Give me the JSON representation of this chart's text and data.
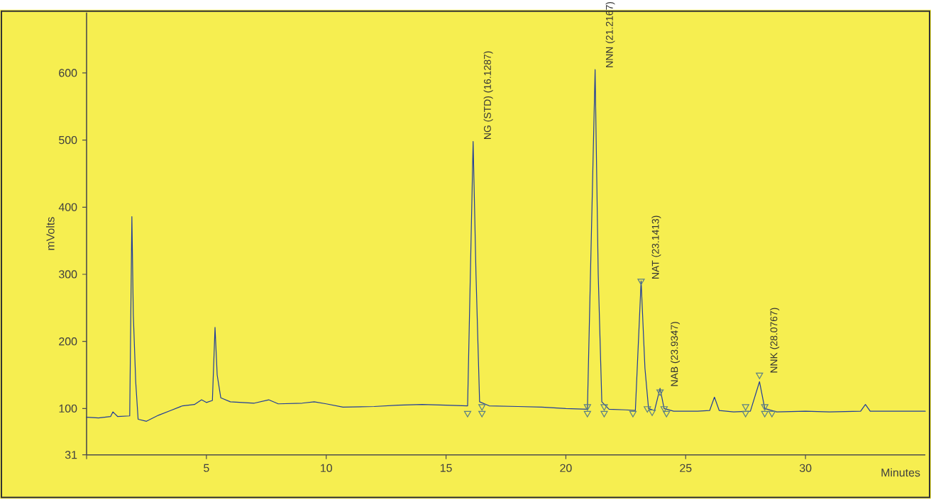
{
  "chart_data": {
    "type": "line",
    "xlabel": "Minutes",
    "ylabel": "mVolts",
    "xlim": [
      0,
      35
    ],
    "ylim": [
      31,
      690
    ],
    "xticks": [
      {
        "value": 0,
        "label": null
      },
      5,
      10,
      15,
      20,
      25,
      30
    ],
    "yticks": [
      31,
      100,
      200,
      300,
      400,
      500,
      600
    ],
    "grid": false,
    "series": [
      {
        "color": "#1f3c9a",
        "x": [
          0,
          0.5,
          1.0,
          1.1,
          1.3,
          1.8,
          1.89,
          1.95,
          2.05,
          2.15,
          2.5,
          3.0,
          3.5,
          4.0,
          4.5,
          4.8,
          5.0,
          5.25,
          5.36,
          5.45,
          5.6,
          6.0,
          7.0,
          7.6,
          8.0,
          9.0,
          9.5,
          10.0,
          10.7,
          12.0,
          13.0,
          14.0,
          15.0,
          15.9,
          16.13,
          16.25,
          16.4,
          16.8,
          18,
          19,
          20,
          20.9,
          21.22,
          21.35,
          21.5,
          21.8,
          22.5,
          22.9,
          23.14,
          23.3,
          23.45,
          23.7,
          23.93,
          24.1,
          24.5,
          25.5,
          26.0,
          26.2,
          26.4,
          27.0,
          27.7,
          28.08,
          28.3,
          28.8,
          30,
          31,
          32.3,
          32.5,
          32.7,
          34,
          35
        ],
        "values": [
          87,
          86,
          88,
          95,
          88,
          89,
          386,
          240,
          140,
          84,
          81,
          90,
          97,
          104,
          106,
          113,
          109,
          112,
          221,
          150,
          116,
          110,
          108,
          113,
          107,
          108,
          110,
          107,
          102,
          103,
          105,
          106,
          105,
          104,
          498,
          300,
          110,
          104,
          103,
          102,
          100,
          99,
          605,
          300,
          110,
          99,
          98,
          97,
          290,
          160,
          100,
          97,
          130,
          100,
          96,
          96,
          97,
          117,
          97,
          95,
          96,
          140,
          100,
          95,
          96,
          95,
          96,
          106,
          96,
          96,
          96
        ]
      },
      {
        "type": "scatter",
        "marker": "triangle",
        "color": "#5a7f86",
        "x": [
          15.9,
          16.5,
          16.5,
          20.9,
          20.9,
          21.6,
          21.6,
          22.8,
          23.14,
          23.4,
          23.6,
          23.93,
          24.1,
          24.2,
          27.5,
          27.5,
          28.08,
          28.3,
          28.3,
          28.6
        ],
        "values": [
          93,
          103,
          93,
          103,
          93,
          103,
          93,
          93,
          290,
          100,
          95,
          125,
          100,
          93,
          93,
          103,
          150,
          103,
          93,
          93
        ]
      }
    ],
    "annotations": [
      {
        "text": "NG (STD) (16.1287)",
        "x": 16.13,
        "y": 498
      },
      {
        "text": "NNN (21.2167)",
        "x": 21.22,
        "y": 605
      },
      {
        "text": "NAT (23.1413)",
        "x": 23.14,
        "y": 290
      },
      {
        "text": "NAB (23.9347)",
        "x": 23.93,
        "y": 130
      },
      {
        "text": "NNK (28.0767)",
        "x": 28.08,
        "y": 150
      }
    ]
  }
}
